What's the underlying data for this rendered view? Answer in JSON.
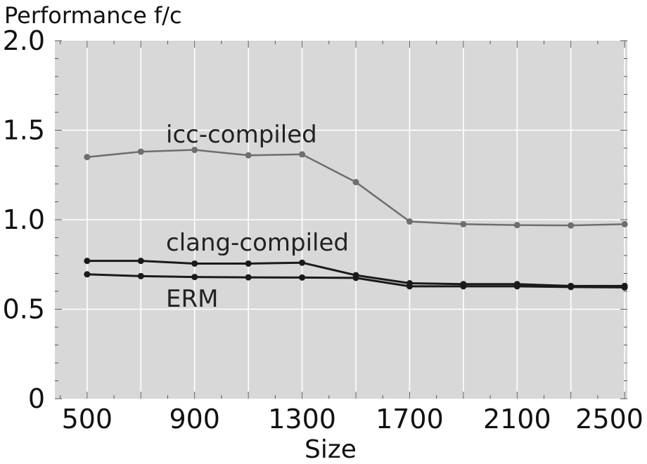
{
  "chart_data": {
    "type": "line",
    "ylabel": "Performance f/c",
    "xlabel": "Size",
    "xlim": [
      380,
      2510
    ],
    "ylim": [
      0,
      2.0
    ],
    "x_ticks": [
      500,
      900,
      1300,
      1700,
      2100,
      2500
    ],
    "x_ticklabels": [
      "500",
      "900",
      "1300",
      "1700",
      "2100",
      "2500"
    ],
    "x_minor_ticks": [
      700,
      1100,
      1500,
      1900,
      2300
    ],
    "y_ticks": [
      0,
      0.5,
      1.0,
      1.5,
      2.0
    ],
    "y_ticklabels": [
      "0",
      "0.5",
      "1.0",
      "1.5",
      "2.0"
    ],
    "grid": true,
    "background": "#d8d8d8",
    "x": [
      500,
      700,
      900,
      1100,
      1300,
      1500,
      1700,
      1900,
      2100,
      2300,
      2500
    ],
    "series": [
      {
        "name": "icc-compiled",
        "color": "#6e6e6e",
        "values": [
          1.35,
          1.38,
          1.39,
          1.36,
          1.365,
          1.21,
          0.99,
          0.975,
          0.97,
          0.968,
          0.975
        ]
      },
      {
        "name": "clang-compiled",
        "color": "#1a1a1a",
        "values": [
          0.77,
          0.77,
          0.755,
          0.755,
          0.76,
          0.69,
          0.645,
          0.64,
          0.64,
          0.63,
          0.63
        ]
      },
      {
        "name": "ERM",
        "color": "#1a1a1a",
        "values": [
          0.695,
          0.685,
          0.68,
          0.678,
          0.677,
          0.675,
          0.628,
          0.628,
          0.628,
          0.624,
          0.622
        ]
      }
    ]
  }
}
